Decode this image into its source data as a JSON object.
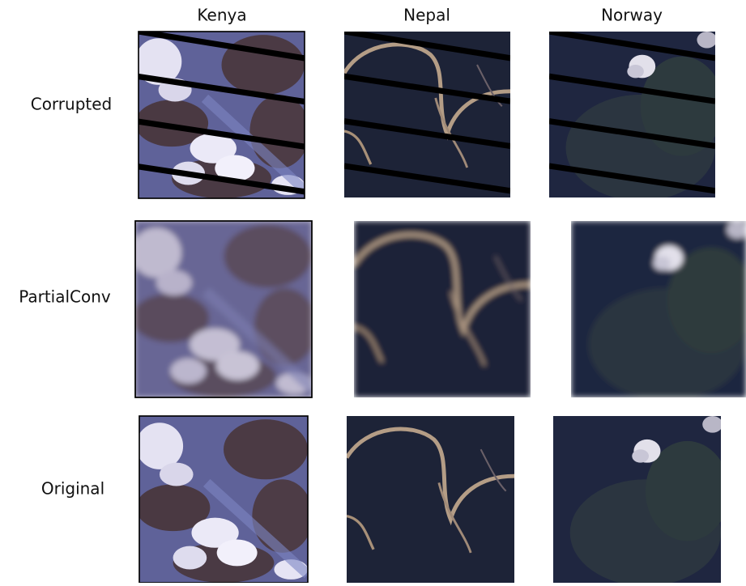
{
  "columns": [
    "Kenya",
    "Nepal",
    "Norway"
  ],
  "rows": [
    "Corrupted",
    "PartialConv",
    "Original"
  ]
}
